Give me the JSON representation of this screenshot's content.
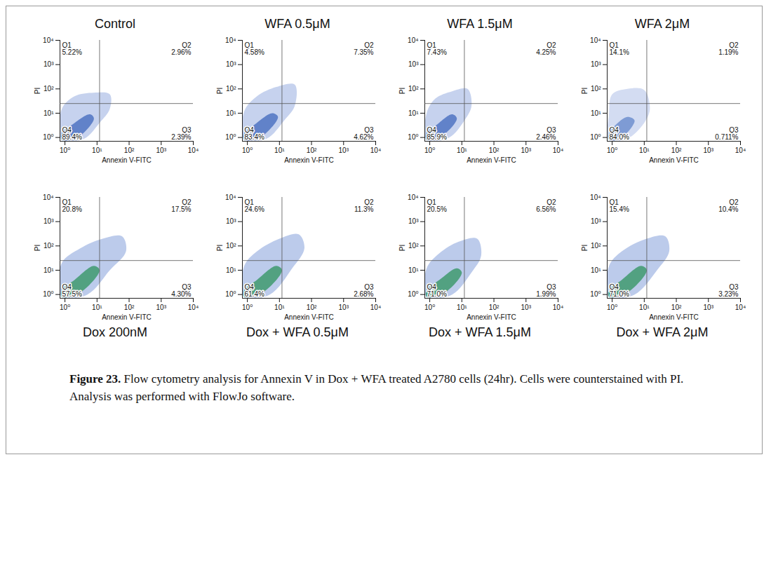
{
  "chart_data": [
    {
      "type": "scatter",
      "title": "Control",
      "x_label": "Annexin V-FITC",
      "y_label": "PI",
      "log": true,
      "xlim": [
        0.7,
        10000
      ],
      "ylim": [
        0.7,
        10000
      ],
      "xticks": [
        {
          "value": 1,
          "label": "10⁰"
        },
        {
          "value": 10,
          "label": "10¹"
        },
        {
          "value": 100,
          "label": "10²"
        },
        {
          "value": 1000,
          "label": "10³"
        },
        {
          "value": 10000,
          "label": "10⁴"
        }
      ],
      "yticks": [
        {
          "value": 1,
          "label": "10⁰"
        },
        {
          "value": 10,
          "label": "10¹"
        },
        {
          "value": 100,
          "label": "10²"
        },
        {
          "value": 1000,
          "label": "10³"
        },
        {
          "value": 10000,
          "label": "10⁴"
        }
      ],
      "gate_x": 12,
      "gate_y": 25,
      "quadrants": [
        "Q1",
        "Q2",
        "Q3",
        "Q4"
      ],
      "values": [
        5.22,
        2.96,
        2.39,
        89.4
      ],
      "value_labels": [
        "5.22%",
        "2.96%",
        "2.39%",
        "89.4%"
      ],
      "population": {
        "x": [
          0.8,
          4,
          12,
          25,
          25,
          8,
          2,
          0.8
        ],
        "y": [
          0.8,
          0.9,
          4,
          15,
          60,
          70,
          50,
          15
        ]
      },
      "core": {
        "x": [
          0.8,
          2.5,
          8,
          6,
          1.5,
          0.8
        ],
        "y": [
          0.8,
          1,
          6,
          9,
          3,
          1.5
        ]
      },
      "colors": [
        "#c6d2ee",
        "#4f74c2"
      ]
    },
    {
      "type": "scatter",
      "title": "WFA 0.5μM",
      "x_label": "Annexin V-FITC",
      "y_label": "PI",
      "log": true,
      "xlim": [
        0.7,
        10000
      ],
      "ylim": [
        0.7,
        10000
      ],
      "xticks": [
        {
          "value": 1,
          "label": "10⁰"
        },
        {
          "value": 10,
          "label": "10¹"
        },
        {
          "value": 100,
          "label": "10²"
        },
        {
          "value": 1000,
          "label": "10³"
        },
        {
          "value": 10000,
          "label": "10⁴"
        }
      ],
      "yticks": [
        {
          "value": 1,
          "label": "10⁰"
        },
        {
          "value": 10,
          "label": "10¹"
        },
        {
          "value": 100,
          "label": "10²"
        },
        {
          "value": 1000,
          "label": "10³"
        },
        {
          "value": 10000,
          "label": "10⁴"
        }
      ],
      "gate_x": 12,
      "gate_y": 25,
      "quadrants": [
        "Q1",
        "Q2",
        "Q3",
        "Q4"
      ],
      "values": [
        4.58,
        7.35,
        4.62,
        83.4
      ],
      "value_labels": [
        "4.58%",
        "7.35%",
        "4.62%",
        "83.4%"
      ],
      "population": {
        "x": [
          0.8,
          4,
          14,
          30,
          30,
          8,
          2,
          0.8
        ],
        "y": [
          0.8,
          0.9,
          5,
          20,
          150,
          120,
          50,
          12
        ]
      },
      "core": {
        "x": [
          0.8,
          2.5,
          9,
          6,
          1.5,
          0.8
        ],
        "y": [
          0.8,
          1,
          7,
          10,
          3,
          1.5
        ]
      },
      "colors": [
        "#c6d2ee",
        "#4f74c2"
      ]
    },
    {
      "type": "scatter",
      "title": "WFA 1.5μM",
      "x_label": "Annexin V-FITC",
      "y_label": "PI",
      "log": true,
      "xlim": [
        0.7,
        10000
      ],
      "ylim": [
        0.7,
        10000
      ],
      "xticks": [
        {
          "value": 1,
          "label": "10⁰"
        },
        {
          "value": 10,
          "label": "10¹"
        },
        {
          "value": 100,
          "label": "10²"
        },
        {
          "value": 1000,
          "label": "10³"
        },
        {
          "value": 10000,
          "label": "10⁴"
        }
      ],
      "yticks": [
        {
          "value": 1,
          "label": "10⁰"
        },
        {
          "value": 10,
          "label": "10¹"
        },
        {
          "value": 100,
          "label": "10²"
        },
        {
          "value": 1000,
          "label": "10³"
        },
        {
          "value": 10000,
          "label": "10⁴"
        }
      ],
      "gate_x": 12,
      "gate_y": 25,
      "quadrants": [
        "Q1",
        "Q2",
        "Q3",
        "Q4"
      ],
      "values": [
        7.43,
        4.25,
        2.46,
        85.9
      ],
      "value_labels": [
        "7.43%",
        "4.25%",
        "2.46%",
        "85.9%"
      ],
      "population": {
        "x": [
          0.8,
          4,
          12,
          20,
          15,
          5,
          1.5,
          0.8
        ],
        "y": [
          0.8,
          1,
          5,
          20,
          100,
          80,
          40,
          10
        ]
      },
      "core": {
        "x": [
          0.8,
          2.5,
          7,
          5,
          1.5,
          0.8
        ],
        "y": [
          0.8,
          1.2,
          6,
          9,
          3,
          1.5
        ]
      },
      "colors": [
        "#c6d2ee",
        "#4f74c2"
      ]
    },
    {
      "type": "scatter",
      "title": "WFA 2μM",
      "x_label": "Annexin V-FITC",
      "y_label": "PI",
      "log": true,
      "xlim": [
        0.7,
        10000
      ],
      "ylim": [
        0.7,
        10000
      ],
      "xticks": [
        {
          "value": 1,
          "label": "10⁰"
        },
        {
          "value": 10,
          "label": "10¹"
        },
        {
          "value": 100,
          "label": "10²"
        },
        {
          "value": 1000,
          "label": "10³"
        },
        {
          "value": 10000,
          "label": "10⁴"
        }
      ],
      "yticks": [
        {
          "value": 1,
          "label": "10⁰"
        },
        {
          "value": 10,
          "label": "10¹"
        },
        {
          "value": 100,
          "label": "10²"
        },
        {
          "value": 1000,
          "label": "10³"
        },
        {
          "value": 10000,
          "label": "10⁴"
        }
      ],
      "gate_x": 12,
      "gate_y": 25,
      "quadrants": [
        "Q1",
        "Q2",
        "Q3",
        "Q4"
      ],
      "values": [
        14.1,
        1.19,
        0.711,
        84.0
      ],
      "value_labels": [
        "14.1%",
        "1.19%",
        "0.711%",
        "84.0%"
      ],
      "population": {
        "x": [
          0.8,
          3,
          10,
          15,
          10,
          3,
          1,
          0.8
        ],
        "y": [
          0.8,
          0.9,
          4,
          15,
          90,
          100,
          60,
          10
        ]
      },
      "core": {
        "x": [
          0.8,
          2,
          5,
          3,
          1.2,
          0.8
        ],
        "y": [
          0.8,
          1,
          5,
          7,
          3,
          1.5
        ]
      },
      "colors": [
        "#d3dcf2",
        "#6f8fcf"
      ]
    },
    {
      "type": "scatter",
      "title": "Dox 200nM",
      "x_label": "Annexin V-FITC",
      "y_label": "PI",
      "log": true,
      "xlim": [
        0.7,
        10000
      ],
      "ylim": [
        0.7,
        10000
      ],
      "xticks": [
        {
          "value": 1,
          "label": "10⁰"
        },
        {
          "value": 10,
          "label": "10¹"
        },
        {
          "value": 100,
          "label": "10²"
        },
        {
          "value": 1000,
          "label": "10³"
        },
        {
          "value": 10000,
          "label": "10⁴"
        }
      ],
      "yticks": [
        {
          "value": 1,
          "label": "10⁰"
        },
        {
          "value": 10,
          "label": "10¹"
        },
        {
          "value": 100,
          "label": "10²"
        },
        {
          "value": 1000,
          "label": "10³"
        },
        {
          "value": 10000,
          "label": "10⁴"
        }
      ],
      "gate_x": 12,
      "gate_y": 25,
      "quadrants": [
        "Q1",
        "Q2",
        "Q3",
        "Q4"
      ],
      "values": [
        20.8,
        17.5,
        4.3,
        57.5
      ],
      "value_labels": [
        "20.8%",
        "17.5%",
        "4.30%",
        "57.5%"
      ],
      "population": {
        "x": [
          0.8,
          5,
          25,
          80,
          60,
          15,
          3,
          0.8
        ],
        "y": [
          0.8,
          1,
          10,
          60,
          250,
          200,
          80,
          20
        ]
      },
      "core": {
        "x": [
          0.8,
          3,
          12,
          8,
          2,
          0.8
        ],
        "y": [
          0.8,
          1.2,
          10,
          15,
          4,
          1.5
        ]
      },
      "colors": [
        "#bccbeb",
        "#3f9a6e"
      ]
    },
    {
      "type": "scatter",
      "title": "Dox + WFA 0.5μM",
      "x_label": "Annexin V-FITC",
      "y_label": "PI",
      "log": true,
      "xlim": [
        0.7,
        10000
      ],
      "ylim": [
        0.7,
        10000
      ],
      "xticks": [
        {
          "value": 1,
          "label": "10⁰"
        },
        {
          "value": 10,
          "label": "10¹"
        },
        {
          "value": 100,
          "label": "10²"
        },
        {
          "value": 1000,
          "label": "10³"
        },
        {
          "value": 10000,
          "label": "10⁴"
        }
      ],
      "yticks": [
        {
          "value": 1,
          "label": "10⁰"
        },
        {
          "value": 10,
          "label": "10¹"
        },
        {
          "value": 100,
          "label": "10²"
        },
        {
          "value": 1000,
          "label": "10³"
        },
        {
          "value": 10000,
          "label": "10⁴"
        }
      ],
      "gate_x": 12,
      "gate_y": 25,
      "quadrants": [
        "Q1",
        "Q2",
        "Q3",
        "Q4"
      ],
      "values": [
        24.6,
        11.3,
        2.68,
        61.4
      ],
      "value_labels": [
        "24.6%",
        "11.3%",
        "2.68%",
        "61.4%"
      ],
      "population": {
        "x": [
          0.8,
          5,
          25,
          60,
          40,
          10,
          2,
          0.8
        ],
        "y": [
          0.8,
          1,
          12,
          80,
          300,
          200,
          60,
          15
        ]
      },
      "core": {
        "x": [
          0.8,
          3,
          12,
          8,
          2,
          0.8
        ],
        "y": [
          0.8,
          1.2,
          10,
          15,
          4,
          1.5
        ]
      },
      "colors": [
        "#bccbeb",
        "#3f9a6e"
      ]
    },
    {
      "type": "scatter",
      "title": "Dox + WFA 1.5μM",
      "x_label": "Annexin V-FITC",
      "y_label": "PI",
      "log": true,
      "xlim": [
        0.7,
        10000
      ],
      "ylim": [
        0.7,
        10000
      ],
      "xticks": [
        {
          "value": 1,
          "label": "10⁰"
        },
        {
          "value": 10,
          "label": "10¹"
        },
        {
          "value": 100,
          "label": "10²"
        },
        {
          "value": 1000,
          "label": "10³"
        },
        {
          "value": 10000,
          "label": "10⁴"
        }
      ],
      "yticks": [
        {
          "value": 1,
          "label": "10⁰"
        },
        {
          "value": 10,
          "label": "10¹"
        },
        {
          "value": 100,
          "label": "10²"
        },
        {
          "value": 1000,
          "label": "10³"
        },
        {
          "value": 10000,
          "label": "10⁴"
        }
      ],
      "gate_x": 12,
      "gate_y": 25,
      "quadrants": [
        "Q1",
        "Q2",
        "Q3",
        "Q4"
      ],
      "values": [
        20.5,
        6.56,
        1.99,
        71.0
      ],
      "value_labels": [
        "20.5%",
        "6.56%",
        "1.99%",
        "71.0%"
      ],
      "population": {
        "x": [
          0.8,
          5,
          20,
          40,
          30,
          8,
          2,
          0.8
        ],
        "y": [
          0.8,
          1,
          8,
          40,
          200,
          150,
          50,
          12
        ]
      },
      "core": {
        "x": [
          0.8,
          3,
          10,
          7,
          2,
          0.8
        ],
        "y": [
          0.8,
          1.2,
          8,
          12,
          4,
          1.5
        ]
      },
      "colors": [
        "#bccbeb",
        "#3f9a6e"
      ]
    },
    {
      "type": "scatter",
      "title": "Dox + WFA 2μM",
      "x_label": "Annexin V-FITC",
      "y_label": "PI",
      "log": true,
      "xlim": [
        0.7,
        10000
      ],
      "ylim": [
        0.7,
        10000
      ],
      "xticks": [
        {
          "value": 1,
          "label": "10⁰"
        },
        {
          "value": 10,
          "label": "10¹"
        },
        {
          "value": 100,
          "label": "10²"
        },
        {
          "value": 1000,
          "label": "10³"
        },
        {
          "value": 10000,
          "label": "10⁴"
        }
      ],
      "yticks": [
        {
          "value": 1,
          "label": "10⁰"
        },
        {
          "value": 10,
          "label": "10¹"
        },
        {
          "value": 100,
          "label": "10²"
        },
        {
          "value": 1000,
          "label": "10³"
        },
        {
          "value": 10000,
          "label": "10⁴"
        }
      ],
      "gate_x": 12,
      "gate_y": 25,
      "quadrants": [
        "Q1",
        "Q2",
        "Q3",
        "Q4"
      ],
      "values": [
        15.4,
        10.4,
        3.23,
        71.0
      ],
      "value_labels": [
        "15.4%",
        "10.4%",
        "3.23%",
        "71.0%"
      ],
      "population": {
        "x": [
          0.8,
          5,
          25,
          60,
          45,
          12,
          2,
          0.8
        ],
        "y": [
          0.8,
          1,
          10,
          60,
          250,
          200,
          60,
          15
        ]
      },
      "core": {
        "x": [
          0.8,
          3,
          12,
          8,
          2,
          0.8
        ],
        "y": [
          0.8,
          1.2,
          10,
          15,
          4,
          1.5
        ]
      },
      "colors": [
        "#bccbeb",
        "#3f9a6e"
      ]
    }
  ],
  "figure": {
    "caption_label": "Figure 23.",
    "caption": "Flow cytometry analysis for Annexin V in Dox + WFA treated A2780 cells (24hr). Cells were counterstained with PI. Analysis was performed with FlowJo software."
  }
}
